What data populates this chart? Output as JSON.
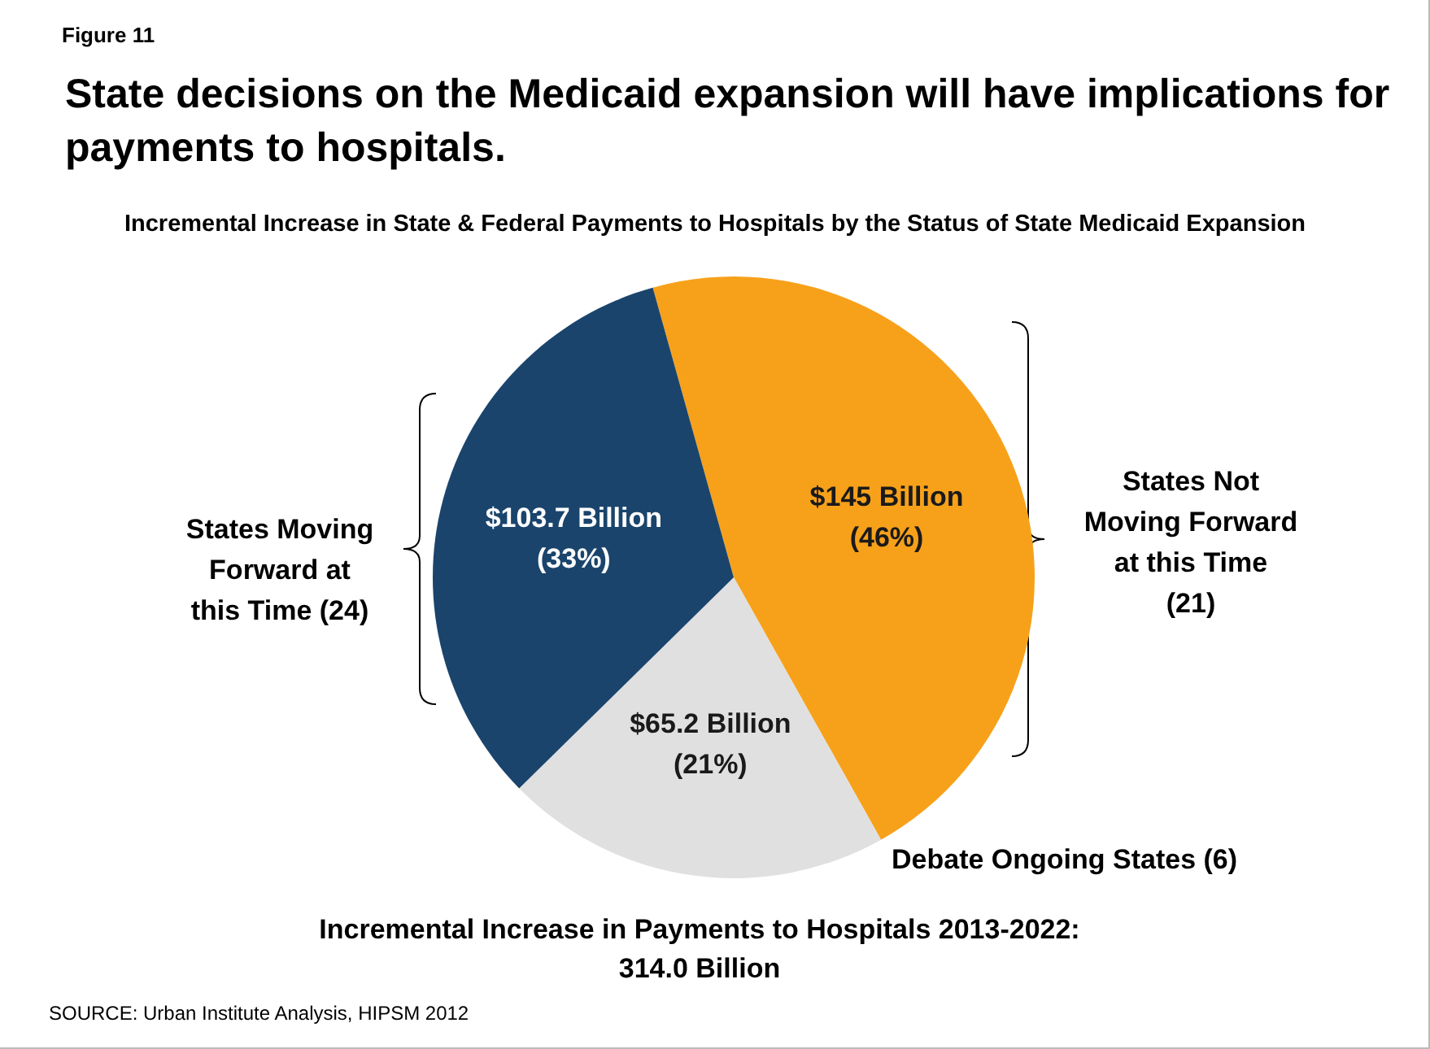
{
  "chart_data": {
    "type": "pie",
    "title": "State decisions on the Medicaid expansion will have implications for payments to hospitals.",
    "subtitle": "Incremental Increase in State & Federal Payments to Hospitals by the Status of State Medicaid Expansion",
    "categories": [
      "States Not Moving Forward at this Time (21)",
      "Debate Ongoing  States (6)",
      "States Moving Forward at this Time (24)"
    ],
    "values": [
      145,
      65.2,
      103.7
    ],
    "colors": [
      "#f7a11a",
      "#e0e0e0",
      "#1a446c"
    ],
    "value_labels": [
      "$145 Billion (46%)",
      "$65.2 Billion (21%)",
      "$103.7 Billion (33%)"
    ],
    "annotations": [
      "Figure 11",
      "Incremental Increase in Payments to Hospitals 2013-2022: 314.0 Billion",
      "SOURCE: Urban Institute Analysis, HIPSM 2012"
    ]
  }
}
